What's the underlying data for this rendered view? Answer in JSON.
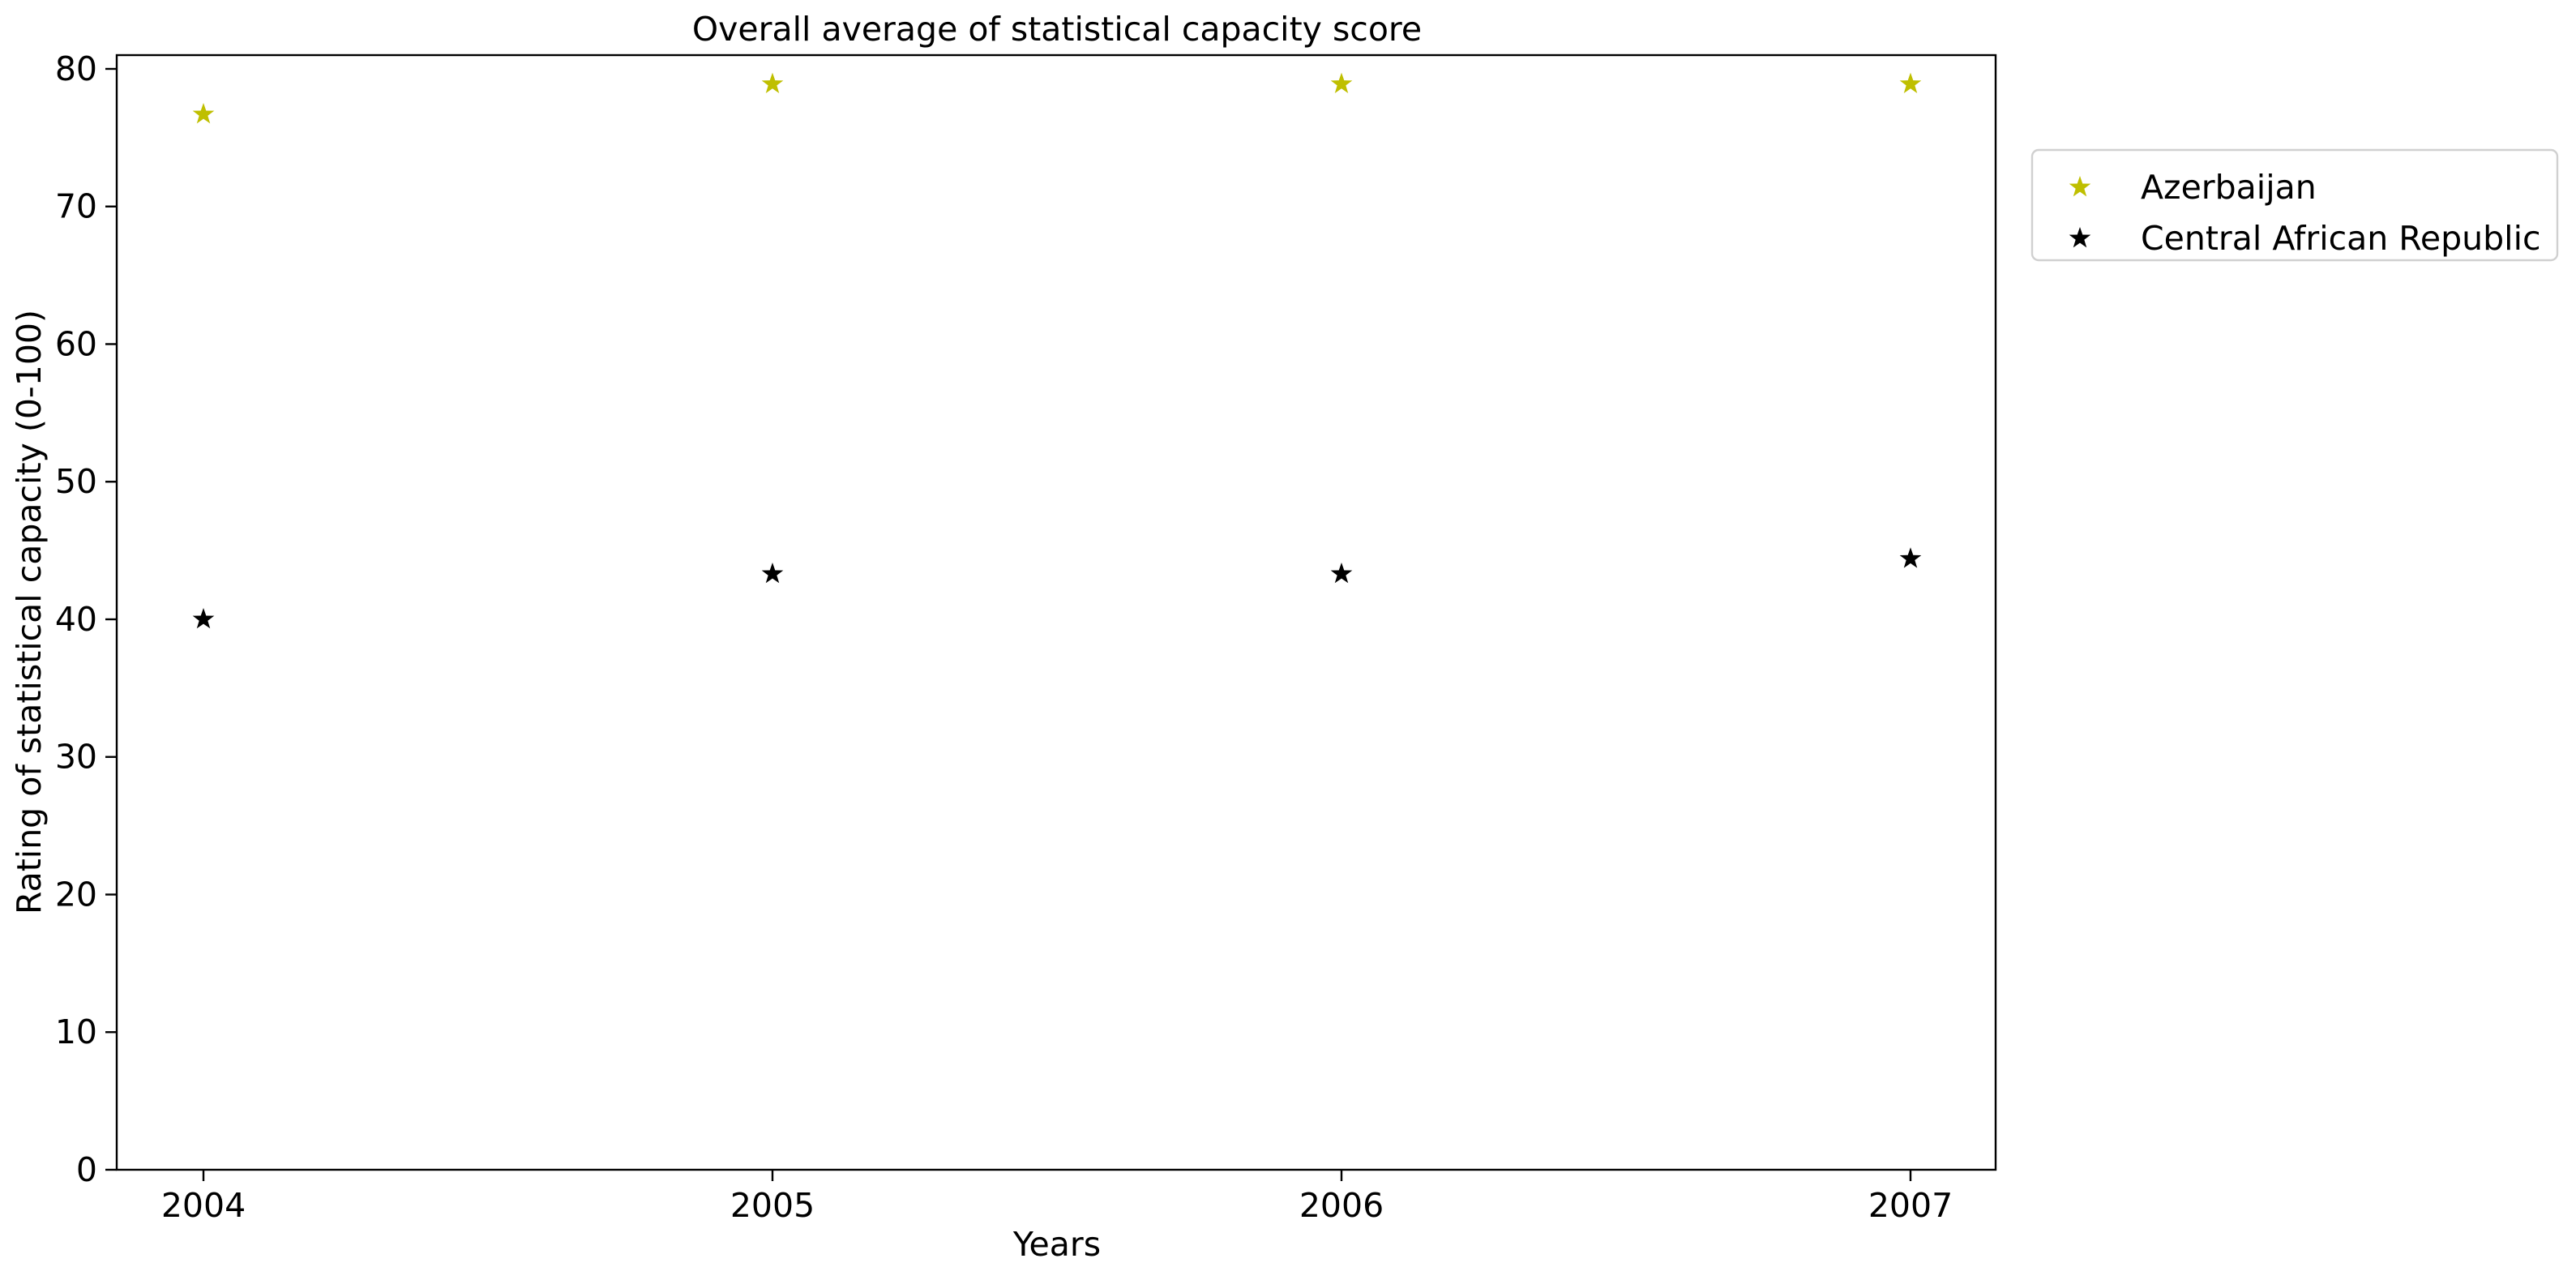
{
  "chart_data": {
    "type": "scatter",
    "title": "Overall average of statistical capacity score",
    "xlabel": "Years",
    "ylabel": "Rating of statistical capacity (0-100)",
    "x": [
      2004,
      2005,
      2006,
      2007
    ],
    "x_tick_labels": [
      "2004",
      "2005",
      "2006",
      "2007"
    ],
    "ylim": [
      0,
      81
    ],
    "y_ticks": [
      0,
      10,
      20,
      30,
      40,
      50,
      60,
      70,
      80
    ],
    "y_tick_labels": [
      "0",
      "10",
      "20",
      "30",
      "40",
      "50",
      "60",
      "70",
      "80"
    ],
    "grid": false,
    "legend_position": "outside-right-top",
    "marker": "star",
    "series": [
      {
        "name": "Azerbaijan",
        "color": "#bfbf00",
        "values": [
          76.7,
          78.9,
          78.9,
          78.9
        ]
      },
      {
        "name": "Central African Republic",
        "color": "#000000",
        "values": [
          40.0,
          43.3,
          43.3,
          44.4
        ]
      }
    ]
  }
}
